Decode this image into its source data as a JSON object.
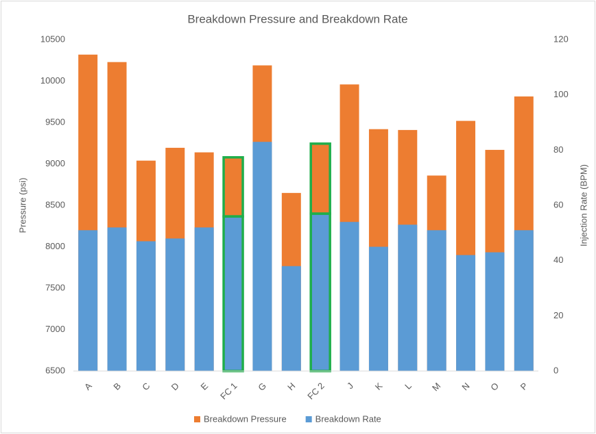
{
  "chart_data": {
    "type": "overlay-bar",
    "title": "Breakdown Pressure and Breakdown Rate",
    "y_label": "Pressure (psi)",
    "y2_label": "Injection Rate (BPM)",
    "categories": [
      "A",
      "B",
      "C",
      "D",
      "E",
      "FC 1",
      "G",
      "H",
      "FC 2",
      "J",
      "K",
      "L",
      "M",
      "N",
      "O",
      "P"
    ],
    "series": [
      {
        "name": "Breakdown Pressure",
        "color": "#ed7d31",
        "values": [
          10320,
          10230,
          9040,
          9195,
          9140,
          9080,
          10190,
          8650,
          9245,
          9960,
          9420,
          9410,
          8860,
          9520,
          9170,
          9815
        ]
      },
      {
        "name": "Breakdown Rate",
        "color": "#5b9bd5",
        "axis": "y2",
        "values": [
          51,
          52,
          47,
          48,
          52,
          56,
          83,
          38,
          57,
          54,
          45,
          53,
          51,
          42,
          43,
          51
        ]
      }
    ],
    "ylim": [
      6500,
      10500
    ],
    "yticks": [
      6500,
      7000,
      7500,
      8000,
      8500,
      9000,
      9500,
      10000,
      10500
    ],
    "y2lim": [
      0,
      120
    ],
    "y2ticks": [
      0,
      20,
      40,
      60,
      80,
      100,
      120
    ],
    "highlighted": [
      5,
      8
    ],
    "highlight_color": "#1fae4b",
    "legend": "bottom",
    "grid": false
  }
}
